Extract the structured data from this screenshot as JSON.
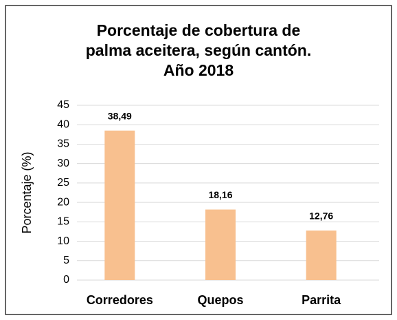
{
  "chart_data": {
    "type": "bar",
    "title": [
      "Porcentaje de cobertura de",
      "palma aceitera, según cantón.",
      "Año 2018"
    ],
    "y_label": "Porcentaje (%)",
    "categories": [
      "Corredores",
      "Quepos",
      "Parrita"
    ],
    "values": [
      38.49,
      18.16,
      12.76
    ],
    "value_labels": [
      "38,49",
      "18,16",
      "12,76"
    ],
    "color": "#f8c08f",
    "ylim": [
      0,
      45
    ],
    "yticks": [
      0,
      5,
      10,
      15,
      20,
      25,
      30,
      35,
      40,
      45
    ],
    "grid": true
  }
}
